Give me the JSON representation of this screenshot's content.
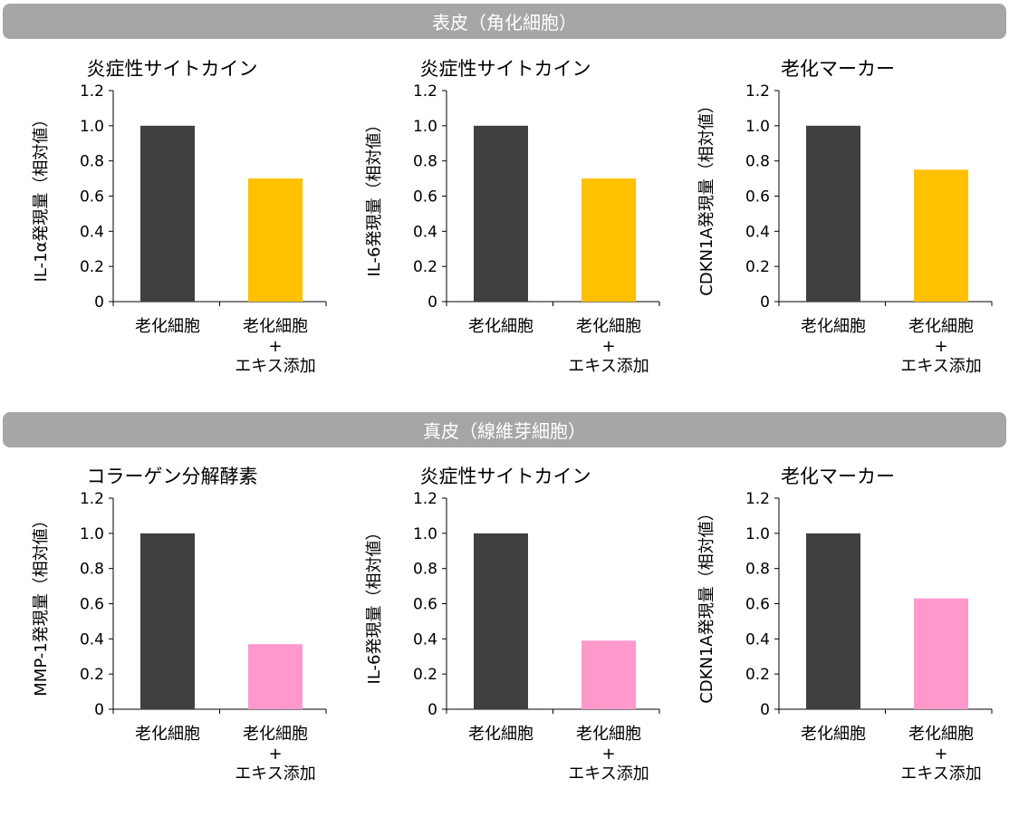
{
  "sections": [
    {
      "label": "表皮（角化細胞）"
    },
    {
      "label": "真皮（線維芽細胞）"
    }
  ],
  "colors": {
    "section_bar": "#a6a6a6",
    "control_bar": "#404040",
    "epidermis_treated_bar": "#ffc000",
    "dermis_treated_bar": "#ff99cc",
    "axis": "#000000"
  },
  "chart_data": [
    {
      "type": "bar",
      "section": "表皮（角化細胞）",
      "title": "炎症性サイトカイン",
      "ylabel": "IL-1α発現量（相対値）",
      "categories": [
        [
          "老化細胞"
        ],
        [
          "老化細胞",
          "+",
          "エキス添加"
        ]
      ],
      "values": [
        1.0,
        0.7
      ],
      "ylim": [
        0,
        1.2
      ],
      "yticks": [
        "1.2",
        "1.0",
        "0.8",
        "0.6",
        "0.4",
        "0.2",
        "0"
      ],
      "grid": false,
      "bar_colors": [
        "#404040",
        "#ffc000"
      ]
    },
    {
      "type": "bar",
      "section": "表皮（角化細胞）",
      "title": "炎症性サイトカイン",
      "ylabel": "IL-6発現量（相対値）",
      "categories": [
        [
          "老化細胞"
        ],
        [
          "老化細胞",
          "+",
          "エキス添加"
        ]
      ],
      "values": [
        1.0,
        0.7
      ],
      "ylim": [
        0,
        1.2
      ],
      "yticks": [
        "1.2",
        "1.0",
        "0.8",
        "0.6",
        "0.4",
        "0.2",
        "0"
      ],
      "grid": false,
      "bar_colors": [
        "#404040",
        "#ffc000"
      ]
    },
    {
      "type": "bar",
      "section": "表皮（角化細胞）",
      "title": "老化マーカー",
      "ylabel": "CDKN1A発現量（相対値）",
      "categories": [
        [
          "老化細胞"
        ],
        [
          "老化細胞",
          "+",
          "エキス添加"
        ]
      ],
      "values": [
        1.0,
        0.75
      ],
      "ylim": [
        0,
        1.2
      ],
      "yticks": [
        "1.2",
        "1.0",
        "0.8",
        "0.6",
        "0.4",
        "0.2",
        "0"
      ],
      "grid": false,
      "bar_colors": [
        "#404040",
        "#ffc000"
      ]
    },
    {
      "type": "bar",
      "section": "真皮（線維芽細胞）",
      "title": "コラーゲン分解酵素",
      "ylabel": "MMP-1発現量（相対値）",
      "categories": [
        [
          "老化細胞"
        ],
        [
          "老化細胞",
          "+",
          "エキス添加"
        ]
      ],
      "values": [
        1.0,
        0.37
      ],
      "ylim": [
        0,
        1.2
      ],
      "yticks": [
        "1.2",
        "1.0",
        "0.8",
        "0.6",
        "0.4",
        "0.2",
        "0"
      ],
      "grid": false,
      "bar_colors": [
        "#404040",
        "#ff99cc"
      ]
    },
    {
      "type": "bar",
      "section": "真皮（線維芽細胞）",
      "title": "炎症性サイトカイン",
      "ylabel": "IL-6発現量（相対値）",
      "categories": [
        [
          "老化細胞"
        ],
        [
          "老化細胞",
          "+",
          "エキス添加"
        ]
      ],
      "values": [
        1.0,
        0.39
      ],
      "ylim": [
        0,
        1.2
      ],
      "yticks": [
        "1.2",
        "1.0",
        "0.8",
        "0.6",
        "0.4",
        "0.2",
        "0"
      ],
      "grid": false,
      "bar_colors": [
        "#404040",
        "#ff99cc"
      ]
    },
    {
      "type": "bar",
      "section": "真皮（線維芽細胞）",
      "title": "老化マーカー",
      "ylabel": "CDKN1A発現量（相対値）",
      "categories": [
        [
          "老化細胞"
        ],
        [
          "老化細胞",
          "+",
          "エキス添加"
        ]
      ],
      "values": [
        1.0,
        0.63
      ],
      "ylim": [
        0,
        1.2
      ],
      "yticks": [
        "1.2",
        "1.0",
        "0.8",
        "0.6",
        "0.4",
        "0.2",
        "0"
      ],
      "grid": false,
      "bar_colors": [
        "#404040",
        "#ff99cc"
      ]
    }
  ]
}
